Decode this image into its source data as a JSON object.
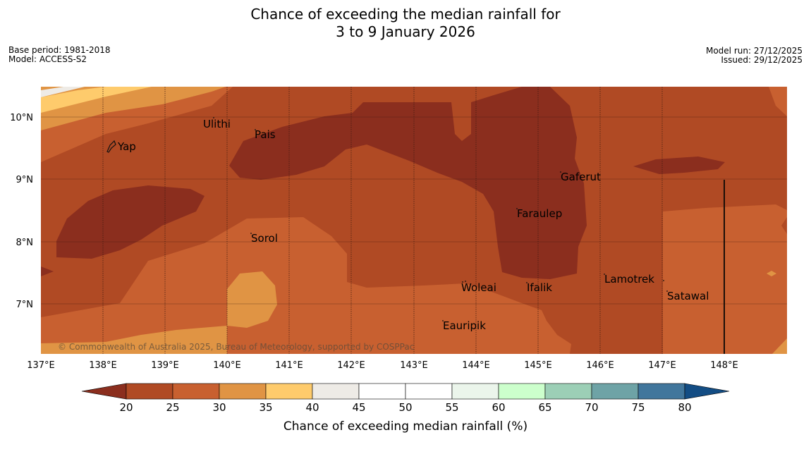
{
  "title": {
    "line1": "Chance of exceeding the median rainfall for",
    "line2": "3 to 9 January 2026"
  },
  "meta": {
    "base_period": "Base period: 1981-2018",
    "model": "Model: ACCESS-S2",
    "model_run": "Model run: 27/12/2025",
    "issued": "Issued: 29/12/2025"
  },
  "map": {
    "longitude_labels": [
      "137°E",
      "138°E",
      "139°E",
      "140°E",
      "141°E",
      "142°E",
      "143°E",
      "144°E",
      "145°E",
      "146°E",
      "147°E",
      "148°E"
    ],
    "latitude_labels": [
      "10°N",
      "9°N",
      "8°N",
      "7°N"
    ],
    "places": [
      {
        "name": "Yap"
      },
      {
        "name": "Ulithi"
      },
      {
        "name": "Pais"
      },
      {
        "name": "Gaferut"
      },
      {
        "name": "Faraulep"
      },
      {
        "name": "Sorol"
      },
      {
        "name": "Woleai"
      },
      {
        "name": "Ifalik"
      },
      {
        "name": "Lamotrek"
      },
      {
        "name": "Satawal"
      },
      {
        "name": "Eauripik"
      }
    ],
    "copyright": "© Commonwealth of Australia 2025, Bureau of Meteorology, supported by COSPPac"
  },
  "colorbar": {
    "title": "Chance of exceeding median rainfall (%)",
    "ticks": [
      "20",
      "25",
      "30",
      "35",
      "40",
      "45",
      "50",
      "55",
      "60",
      "65",
      "70",
      "75",
      "80"
    ],
    "colors": {
      "below20": "#8b2e1e",
      "b20_25": "#b04a24",
      "b25_30": "#c86030",
      "b30_35": "#e09444",
      "b35_40": "#fecb6c",
      "b40_45": "#eeebe6",
      "b45_50": "#ffffff",
      "b50_55": "#ffffff",
      "b55_60": "#ebf5eb",
      "b60_65": "#ccffcc",
      "b65_70": "#9ccfb6",
      "b70_75": "#6ea3a6",
      "b75_80": "#41769c",
      "above80": "#134d84"
    }
  }
}
